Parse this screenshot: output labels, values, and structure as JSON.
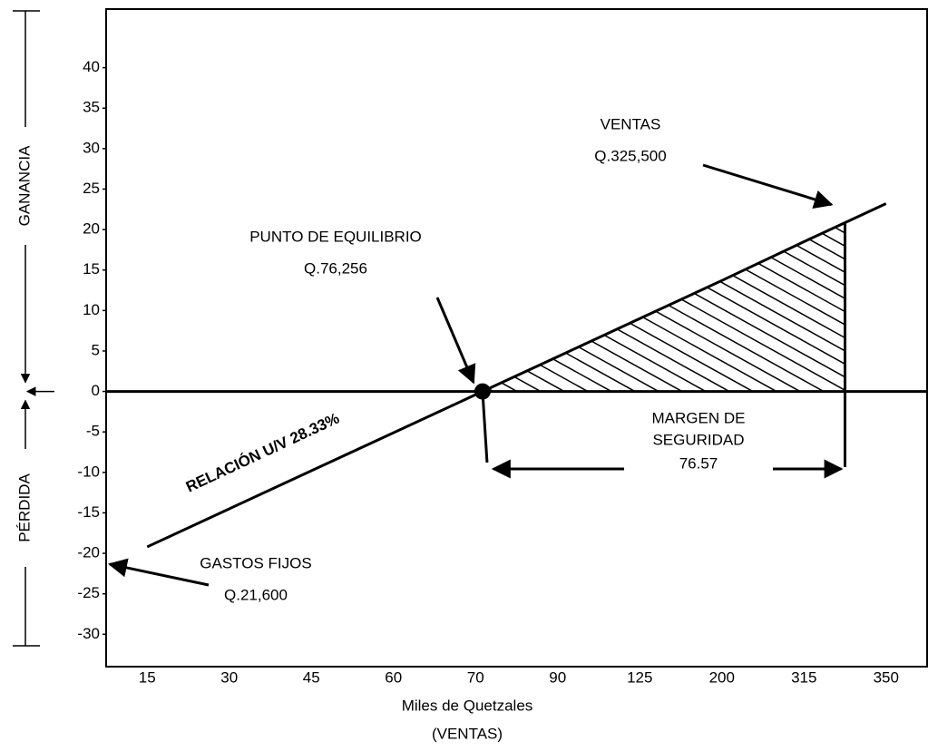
{
  "chart_data": {
    "type": "line",
    "x_label": [
      "Miles de Quetzales",
      "(VENTAS)"
    ],
    "categories": [
      "15",
      "30",
      "45",
      "60",
      "70",
      "90",
      "125",
      "200",
      "315",
      "350"
    ],
    "series": [
      {
        "name": "RELACIÓN U/V  28.33%",
        "color": "#000000",
        "values": [
          -19.2,
          -14.5,
          -9.8,
          -5.1,
          -0.4,
          4.3,
          9.0,
          13.7,
          18.5,
          23.2
        ]
      }
    ],
    "ylim": [
      -34,
      45
    ],
    "yticks": [
      40,
      35,
      30,
      25,
      20,
      15,
      10,
      5,
      0,
      -5,
      -10,
      -15,
      -20,
      -25,
      -30
    ],
    "side_labels": [
      "GANANCIA",
      "PÉRDIDA"
    ],
    "annotations": {
      "break_even": [
        "PUNTO DE EQUILIBRIO",
        "Q.76,256"
      ],
      "sales": [
        "VENTAS",
        "Q.325,500"
      ],
      "margin": [
        "MARGEN DE",
        "SEGURIDAD",
        "76.57"
      ],
      "fixed_costs": [
        "GASTOS FIJOS",
        "Q.21,600"
      ]
    }
  }
}
